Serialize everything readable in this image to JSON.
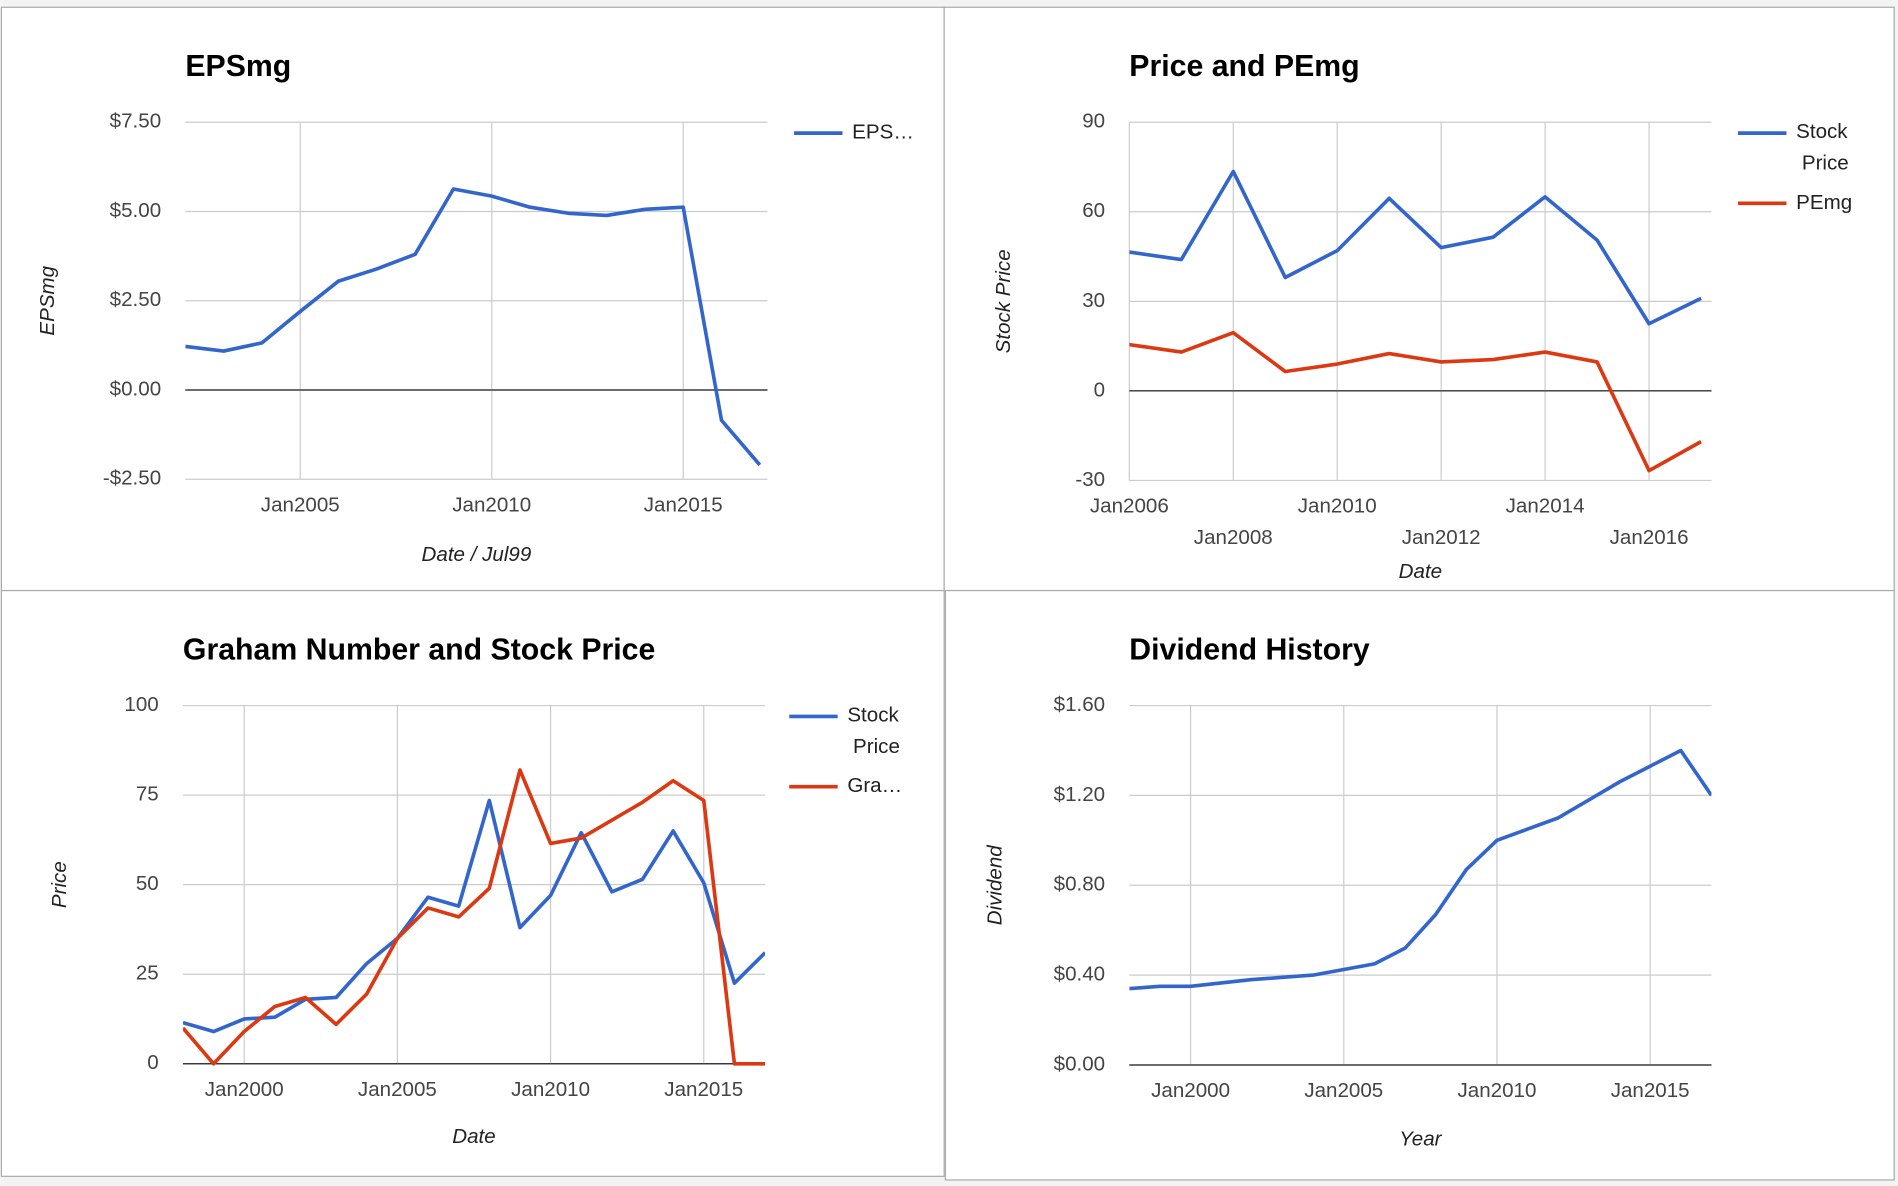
{
  "chart_data": [
    {
      "type": "line",
      "title": "EPSmg",
      "x_label": "Date / Jul99",
      "y_label": "EPSmg",
      "x": [
        2002,
        2003,
        2004,
        2005,
        2006,
        2007,
        2008,
        2009,
        2010,
        2011,
        2012,
        2013,
        2014,
        2015,
        2016,
        2017
      ],
      "series": [
        {
          "name": "EPS…",
          "color": "#3366cc",
          "values": [
            1.22,
            1.09,
            1.32,
            2.2,
            3.05,
            3.39,
            3.8,
            5.63,
            5.43,
            5.12,
            4.95,
            4.89,
            5.06,
            5.12,
            -0.85,
            -2.1
          ]
        }
      ],
      "xlim": [
        2002,
        2017.2
      ],
      "xticks": [
        {
          "value": 2005,
          "label": "Jan2005"
        },
        {
          "value": 2010,
          "label": "Jan2010"
        },
        {
          "value": 2015,
          "label": "Jan2015"
        }
      ],
      "ylim": [
        -2.5,
        7.5
      ],
      "yticks": [
        {
          "value": -2.5,
          "label": "-$2.50"
        },
        {
          "value": 0,
          "label": "$0.00"
        },
        {
          "value": 2.5,
          "label": "$2.50"
        },
        {
          "value": 5,
          "label": "$5.00"
        },
        {
          "value": 7.5,
          "label": "$7.50"
        }
      ],
      "grid": true,
      "legend": "right"
    },
    {
      "type": "line",
      "title": "Price and PEmg",
      "x_label": "Date",
      "y_label": "Stock Price",
      "x": [
        2006,
        2007,
        2008,
        2009,
        2010,
        2011,
        2012,
        2013,
        2014,
        2015,
        2016,
        2017
      ],
      "series": [
        {
          "name": "Stock Price",
          "color": "#3366cc",
          "values": [
            46.5,
            44,
            73.5,
            38,
            47,
            64.5,
            48,
            51.5,
            65,
            50.5,
            22.5,
            31
          ]
        },
        {
          "name": "PEmg",
          "color": "#dc3912",
          "values": [
            15.5,
            13,
            19.5,
            6.5,
            9,
            12.5,
            9.7,
            10.5,
            13,
            9.7,
            -26.7,
            -17
          ]
        }
      ],
      "xlim": [
        2006,
        2017.2
      ],
      "xticks": [
        {
          "value": 2006,
          "label": "Jan2006"
        },
        {
          "value": 2008,
          "label": "Jan2008"
        },
        {
          "value": 2010,
          "label": "Jan2010"
        },
        {
          "value": 2012,
          "label": "Jan2012"
        },
        {
          "value": 2014,
          "label": "Jan2014"
        },
        {
          "value": 2016,
          "label": "Jan2016"
        }
      ],
      "ylim": [
        -30,
        90
      ],
      "yticks": [
        -30,
        0,
        30,
        60,
        90
      ],
      "grid": true,
      "legend": "right"
    },
    {
      "type": "line",
      "title": "Graham Number and Stock Price",
      "x_label": "Date",
      "y_label": "Price",
      "x": [
        1998,
        1999,
        2000,
        2001,
        2002,
        2003,
        2004,
        2005,
        2006,
        2007,
        2008,
        2009,
        2010,
        2011,
        2012,
        2013,
        2014,
        2015,
        2016,
        2017
      ],
      "series": [
        {
          "name": "Stock Price",
          "color": "#3366cc",
          "values": [
            11.5,
            9,
            12.5,
            13,
            18,
            18.5,
            28,
            35,
            46.5,
            44,
            73.5,
            38,
            47,
            64.5,
            48,
            51.5,
            65,
            50.5,
            22.5,
            31
          ]
        },
        {
          "name": "Gra…",
          "color": "#dc3912",
          "values": [
            10,
            0,
            9,
            16,
            18.5,
            11,
            19.5,
            35,
            43.5,
            41,
            49,
            82,
            61.5,
            63,
            68,
            73,
            79,
            73.5,
            0,
            0
          ]
        }
      ],
      "xlim": [
        1998,
        2017
      ],
      "xticks": [
        {
          "value": 2000,
          "label": "Jan2000"
        },
        {
          "value": 2005,
          "label": "Jan2005"
        },
        {
          "value": 2010,
          "label": "Jan2010"
        },
        {
          "value": 2015,
          "label": "Jan2015"
        }
      ],
      "ylim": [
        0,
        100
      ],
      "yticks": [
        0,
        25,
        50,
        75,
        100
      ],
      "grid": true,
      "legend": "right"
    },
    {
      "type": "line",
      "title": "Dividend History",
      "x_label": "Year",
      "y_label": "Dividend",
      "x": [
        1998,
        1999,
        2000,
        2001,
        2002,
        2003,
        2004,
        2005,
        2006,
        2007,
        2008,
        2009,
        2010,
        2011,
        2012,
        2013,
        2014,
        2015,
        2016,
        2017
      ],
      "series": [
        {
          "color": "#3366cc",
          "values": [
            0.34,
            0.35,
            0.35,
            0.365,
            0.38,
            0.39,
            0.4,
            0.425,
            0.45,
            0.52,
            0.67,
            0.87,
            1.0,
            1.05,
            1.1,
            1.18,
            1.26,
            1.33,
            1.4,
            1.2
          ]
        }
      ],
      "xlim": [
        1998,
        2017
      ],
      "xticks": [
        {
          "value": 2000,
          "label": "Jan2000"
        },
        {
          "value": 2005,
          "label": "Jan2005"
        },
        {
          "value": 2010,
          "label": "Jan2010"
        },
        {
          "value": 2015,
          "label": "Jan2015"
        }
      ],
      "ylim": [
        0,
        1.6
      ],
      "yticks": [
        {
          "value": 0,
          "label": "$0.00"
        },
        {
          "value": 0.4,
          "label": "$0.40"
        },
        {
          "value": 0.8,
          "label": "$0.80"
        },
        {
          "value": 1.2,
          "label": "$1.20"
        },
        {
          "value": 1.6,
          "label": "$1.60"
        }
      ],
      "grid": true
    }
  ]
}
